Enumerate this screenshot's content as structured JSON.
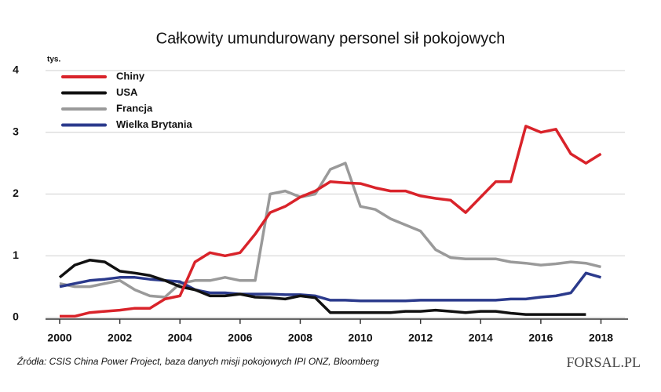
{
  "chart_data": {
    "type": "line",
    "title": "Całkowity umundurowany personel sił pokojowych",
    "y_unit": "tys.",
    "source": "Źródła: CSIS China Power Project, baza danych misji pokojowych IPI ONZ, Bloomberg",
    "logo": "FORSAL.PL",
    "x": [
      2000,
      2000.5,
      2001,
      2001.5,
      2002,
      2002.5,
      2003,
      2003.5,
      2004,
      2004.5,
      2005,
      2005.5,
      2006,
      2006.5,
      2007,
      2007.5,
      2008,
      2008.5,
      2009,
      2009.5,
      2010,
      2010.5,
      2011,
      2011.5,
      2012,
      2012.5,
      2013,
      2013.5,
      2014,
      2014.5,
      2015,
      2015.5,
      2016,
      2016.5,
      2017,
      2017.5,
      2018
    ],
    "series": [
      {
        "name": "Chiny",
        "color": "#d9232a",
        "values": [
          0.02,
          0.02,
          0.08,
          0.1,
          0.12,
          0.15,
          0.15,
          0.3,
          0.35,
          0.9,
          1.05,
          1.0,
          1.05,
          1.35,
          1.7,
          1.8,
          1.95,
          2.05,
          2.2,
          2.18,
          2.17,
          2.1,
          2.05,
          2.05,
          1.97,
          1.93,
          1.9,
          1.7,
          1.95,
          2.2,
          2.2,
          3.1,
          3.0,
          3.05,
          2.65,
          2.5,
          2.65
        ]
      },
      {
        "name": "USA",
        "color": "#111111",
        "values": [
          0.65,
          0.85,
          0.93,
          0.9,
          0.75,
          0.72,
          0.68,
          0.6,
          0.5,
          0.45,
          0.35,
          0.35,
          0.38,
          0.33,
          0.32,
          0.3,
          0.35,
          0.32,
          0.08,
          0.08,
          0.08,
          0.08,
          0.08,
          0.1,
          0.1,
          0.12,
          0.1,
          0.08,
          0.1,
          0.1,
          0.07,
          0.05,
          0.05,
          0.05,
          0.05,
          0.05,
          null
        ]
      },
      {
        "name": "Francja",
        "color": "#9a9a9a",
        "values": [
          0.55,
          0.5,
          0.5,
          0.55,
          0.6,
          0.45,
          0.35,
          0.33,
          0.55,
          0.6,
          0.6,
          0.65,
          0.6,
          0.6,
          2.0,
          2.05,
          1.95,
          2.0,
          2.4,
          2.5,
          1.8,
          1.75,
          1.6,
          1.5,
          1.4,
          1.1,
          0.97,
          0.95,
          0.95,
          0.95,
          0.9,
          0.88,
          0.85,
          0.87,
          0.9,
          0.88,
          0.82
        ]
      },
      {
        "name": "Wielka Brytania",
        "color": "#2b3a8c",
        "values": [
          0.5,
          0.55,
          0.6,
          0.62,
          0.65,
          0.65,
          0.62,
          0.6,
          0.58,
          0.45,
          0.4,
          0.4,
          0.38,
          0.38,
          0.38,
          0.37,
          0.37,
          0.35,
          0.28,
          0.28,
          0.27,
          0.27,
          0.27,
          0.27,
          0.28,
          0.28,
          0.28,
          0.28,
          0.28,
          0.28,
          0.3,
          0.3,
          0.33,
          0.35,
          0.4,
          0.72,
          0.65
        ]
      }
    ],
    "xlim": [
      2000,
      2018.9
    ],
    "ylim": [
      0,
      4
    ],
    "xticks": [
      2000,
      2002,
      2004,
      2006,
      2008,
      2010,
      2012,
      2014,
      2016,
      2018
    ],
    "yticks": [
      0,
      1,
      2,
      3,
      4
    ],
    "grid": true
  }
}
